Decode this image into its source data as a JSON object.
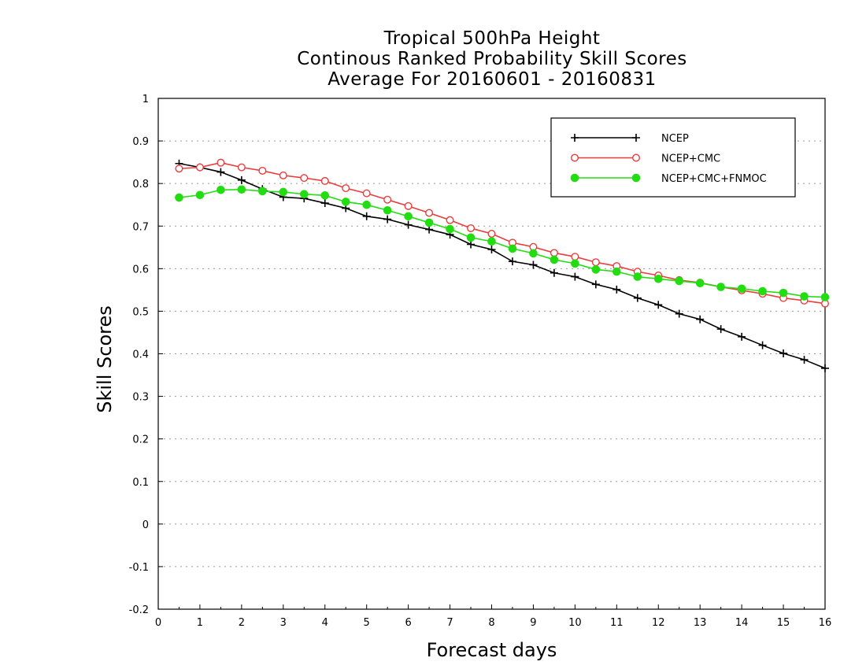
{
  "titles": [
    "Tropical 500hPa Height",
    "Continous Ranked Probability Skill Scores",
    "Average For 20160601 - 20160831"
  ],
  "colors": {
    "NCEP": "#000000",
    "NCEP+CMC": "#ee3b3b",
    "NCEP+CMC+FNMOC": "#22dd11"
  },
  "chart_data": {
    "type": "line",
    "title": "Tropical 500hPa Height",
    "subtitle": "Continous Ranked Probability Skill Scores / Average For 20160601 - 20160831",
    "xlabel": "Forecast days",
    "ylabel": "Skill Scores",
    "xlim": [
      0,
      16
    ],
    "ylim": [
      -0.2,
      1
    ],
    "xticks": [
      0,
      1,
      2,
      3,
      4,
      5,
      6,
      7,
      8,
      9,
      10,
      11,
      12,
      13,
      14,
      15,
      16
    ],
    "yticks": [
      -0.2,
      -0.1,
      0,
      0.1,
      0.2,
      0.3,
      0.4,
      0.5,
      0.6,
      0.7,
      0.8,
      0.9,
      1
    ],
    "ytick_labels": [
      "-0.2",
      "-0.1",
      "0",
      "0.1",
      "0.2",
      "0.3",
      "0.4",
      "0.5",
      "0.6",
      "0.7",
      "0.8",
      "0.9",
      "1"
    ],
    "grid": "horizontal dotted",
    "legend_position": "top-right",
    "x": [
      0.5,
      1,
      1.5,
      2,
      2.5,
      3,
      3.5,
      4,
      4.5,
      5,
      5.5,
      6,
      6.5,
      7,
      7.5,
      8,
      8.5,
      9,
      9.5,
      10,
      10.5,
      11,
      11.5,
      12,
      12.5,
      13,
      13.5,
      14,
      14.5,
      15,
      15.5,
      16
    ],
    "series": [
      {
        "name": "NCEP",
        "marker": "plus",
        "values": [
          0.847,
          0.838,
          0.827,
          0.808,
          0.787,
          0.768,
          0.765,
          0.754,
          0.742,
          0.723,
          0.716,
          0.703,
          0.692,
          0.68,
          0.657,
          0.645,
          0.617,
          0.609,
          0.59,
          0.581,
          0.563,
          0.551,
          0.531,
          0.515,
          0.494,
          0.481,
          0.458,
          0.44,
          0.42,
          0.401,
          0.386,
          0.366
        ]
      },
      {
        "name": "NCEP+CMC",
        "marker": "open-circle",
        "values": [
          0.835,
          0.838,
          0.849,
          0.838,
          0.83,
          0.819,
          0.813,
          0.806,
          0.789,
          0.777,
          0.762,
          0.747,
          0.731,
          0.714,
          0.695,
          0.682,
          0.661,
          0.651,
          0.637,
          0.628,
          0.615,
          0.606,
          0.593,
          0.584,
          0.573,
          0.567,
          0.557,
          0.549,
          0.541,
          0.531,
          0.525,
          0.518
        ]
      },
      {
        "name": "NCEP+CMC+FNMOC",
        "marker": "filled-circle",
        "values": [
          0.767,
          0.773,
          0.785,
          0.786,
          0.782,
          0.78,
          0.775,
          0.772,
          0.757,
          0.75,
          0.737,
          0.723,
          0.708,
          0.693,
          0.673,
          0.664,
          0.647,
          0.636,
          0.621,
          0.612,
          0.598,
          0.593,
          0.581,
          0.576,
          0.571,
          0.566,
          0.557,
          0.553,
          0.547,
          0.543,
          0.535,
          0.533
        ]
      }
    ]
  }
}
